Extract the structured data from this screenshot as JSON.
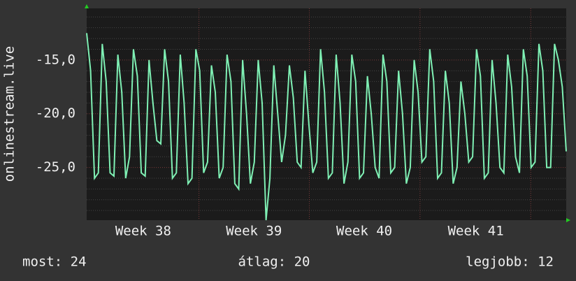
{
  "chart_data": {
    "type": "line",
    "y_label": "onlinestream.live",
    "series": [
      {
        "color": "#7ff0b4",
        "values": [
          -12.5,
          -16,
          -26,
          -25.5,
          -13.5,
          -17,
          -25.5,
          -25.8,
          -14.5,
          -18,
          -26,
          -24,
          -14,
          -16.5,
          -25.5,
          -25.8,
          -15,
          -19,
          -22.5,
          -22.8,
          -14,
          -17,
          -26,
          -25.5,
          -14.5,
          -19,
          -26.5,
          -26,
          -14,
          -16,
          -25.5,
          -24.5,
          -15.5,
          -18,
          -26,
          -25,
          -14.5,
          -17,
          -26.5,
          -27,
          -15,
          -20,
          -26.5,
          -24.5,
          -15,
          -19,
          -29.9,
          -26,
          -15.5,
          -20,
          -24.5,
          -22,
          -15.5,
          -18.5,
          -24.5,
          -25,
          -16,
          -21,
          -25.5,
          -24.5,
          -14,
          -18,
          -26,
          -25.5,
          -14.5,
          -19,
          -26.5,
          -24.5,
          -14.5,
          -17,
          -26,
          -25.5,
          -16.5,
          -20,
          -25,
          -26,
          -14.5,
          -17,
          -25.5,
          -25,
          -16,
          -20,
          -26.5,
          -25,
          -15,
          -18,
          -24.5,
          -24,
          -14,
          -17,
          -26,
          -25.5,
          -16,
          -19,
          -26.5,
          -25,
          -17,
          -20,
          -24.5,
          -24,
          -14,
          -16.5,
          -26,
          -25.5,
          -15,
          -19,
          -25,
          -25.5,
          -14.5,
          -17.5,
          -24,
          -25.5,
          -14,
          -16.5,
          -25,
          -24.5,
          -13.5,
          -16,
          -25,
          -25,
          -13.5,
          -15,
          -17.5,
          -23.5
        ]
      }
    ],
    "xlim": [
      0,
      123
    ],
    "xticks": [
      {
        "value": 14.5,
        "label": "Week 38"
      },
      {
        "value": 42.9,
        "label": "Week 39"
      },
      {
        "value": 71.2,
        "label": "Week 40"
      },
      {
        "value": 99.8,
        "label": "Week 41"
      }
    ],
    "xgrid": [
      28.8,
      57.1,
      85.5,
      113.9
    ],
    "ylim": [
      -29.9,
      -10.2
    ],
    "yticks": [
      {
        "value": -25,
        "label": "-25,0"
      },
      {
        "value": -20,
        "label": "-20,0"
      },
      {
        "value": -15,
        "label": "-15,0"
      }
    ],
    "minor_yticks": [
      -29,
      -28,
      -27,
      -26,
      -24,
      -23,
      -22,
      -21,
      -19,
      -18,
      -17,
      -16,
      -14,
      -13,
      -12,
      -11
    ],
    "footer": {
      "current": "most: 24",
      "average": "átlag: 20",
      "best": "legjobb: 12"
    }
  }
}
